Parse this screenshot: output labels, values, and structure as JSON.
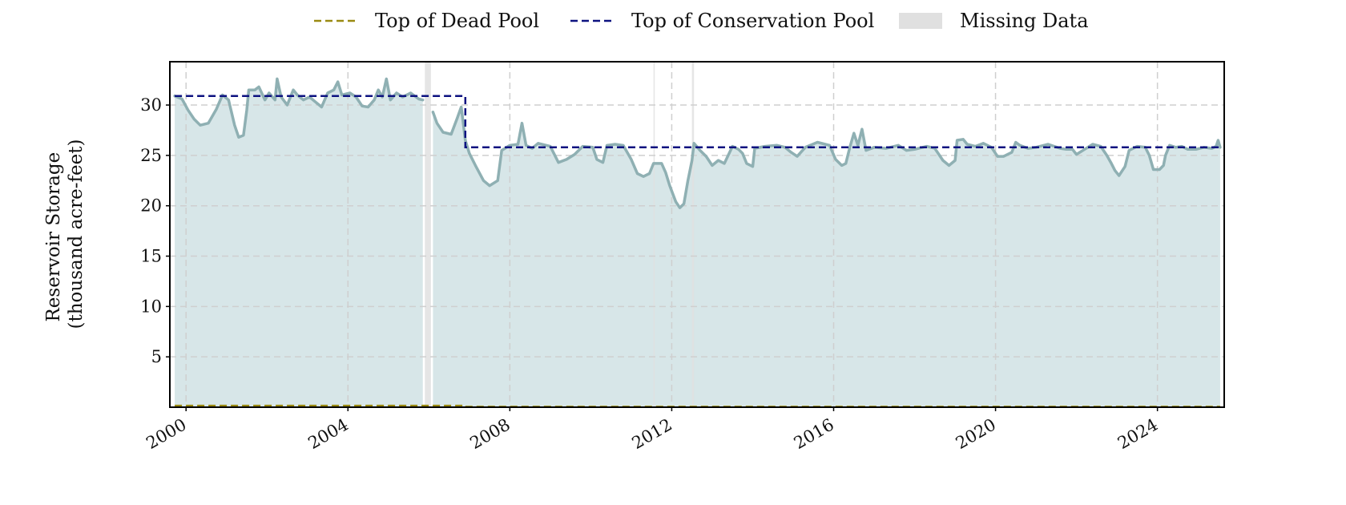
{
  "legend": {
    "dead_pool_label": "Top of Dead Pool",
    "conservation_pool_label": "Top of Conservation Pool",
    "missing_data_label": "Missing Data"
  },
  "colors": {
    "storage_line": "#8fb0b3",
    "storage_fill": "#d7e6e8",
    "conservation_pool": "#0d1280",
    "dead_pool": "#9a8a12",
    "missing_data": "#e0e0e0",
    "grid": "#cfcfcf"
  },
  "chart_data": {
    "type": "area",
    "ylabel_lines": [
      "Reservoir Storage",
      "(thousand acre-feet)"
    ],
    "xlabel": "",
    "xlim": [
      1999.6,
      2025.65
    ],
    "ylim": [
      0,
      34.3
    ],
    "x_ticks": [
      2000,
      2004,
      2008,
      2012,
      2016,
      2020,
      2024
    ],
    "x_tick_labels": [
      "2000",
      "2004",
      "2008",
      "2012",
      "2016",
      "2020",
      "2024"
    ],
    "y_ticks": [
      5,
      10,
      15,
      20,
      25,
      30
    ],
    "y_tick_labels": [
      "5",
      "10",
      "15",
      "20",
      "25",
      "30"
    ],
    "grid": true,
    "legend_position": "top-center",
    "series": [
      {
        "name": "Reservoir Storage",
        "points": [
          [
            1999.72,
            30.9
          ],
          [
            1999.9,
            30.6
          ],
          [
            2000.05,
            29.5
          ],
          [
            2000.2,
            28.6
          ],
          [
            2000.35,
            28.0
          ],
          [
            2000.55,
            28.2
          ],
          [
            2000.75,
            29.6
          ],
          [
            2000.9,
            31.0
          ],
          [
            2001.05,
            30.5
          ],
          [
            2001.2,
            28.0
          ],
          [
            2001.3,
            26.8
          ],
          [
            2001.42,
            27.0
          ],
          [
            2001.5,
            29.5
          ],
          [
            2001.55,
            31.5
          ],
          [
            2001.7,
            31.5
          ],
          [
            2001.8,
            31.8
          ],
          [
            2001.95,
            30.5
          ],
          [
            2002.05,
            31.2
          ],
          [
            2002.2,
            30.5
          ],
          [
            2002.25,
            32.6
          ],
          [
            2002.35,
            30.8
          ],
          [
            2002.5,
            30.0
          ],
          [
            2002.65,
            31.5
          ],
          [
            2002.75,
            31.0
          ],
          [
            2002.9,
            30.5
          ],
          [
            2003.05,
            30.8
          ],
          [
            2003.2,
            30.3
          ],
          [
            2003.35,
            29.8
          ],
          [
            2003.5,
            31.2
          ],
          [
            2003.65,
            31.5
          ],
          [
            2003.75,
            32.3
          ],
          [
            2003.85,
            31.0
          ],
          [
            2004.05,
            31.2
          ],
          [
            2004.2,
            30.8
          ],
          [
            2004.35,
            29.9
          ],
          [
            2004.5,
            29.8
          ],
          [
            2004.65,
            30.5
          ],
          [
            2004.75,
            31.5
          ],
          [
            2004.85,
            30.8
          ],
          [
            2004.95,
            32.6
          ],
          [
            2005.05,
            30.5
          ],
          [
            2005.2,
            31.2
          ],
          [
            2005.35,
            30.8
          ],
          [
            2005.55,
            31.2
          ],
          [
            2005.75,
            30.6
          ],
          [
            2005.85,
            30.5
          ],
          [
            2005.9,
            null
          ],
          [
            2006.1,
            29.3
          ],
          [
            2006.2,
            28.2
          ],
          [
            2006.35,
            27.3
          ],
          [
            2006.55,
            27.1
          ],
          [
            2006.7,
            28.7
          ],
          [
            2006.8,
            29.8
          ],
          [
            2006.9,
            26.5
          ],
          [
            2007.0,
            25.2
          ],
          [
            2007.15,
            24.0
          ],
          [
            2007.35,
            22.5
          ],
          [
            2007.5,
            22.0
          ],
          [
            2007.7,
            22.5
          ],
          [
            2007.8,
            25.5
          ],
          [
            2008.0,
            26.0
          ],
          [
            2008.2,
            26.1
          ],
          [
            2008.3,
            28.2
          ],
          [
            2008.4,
            26.0
          ],
          [
            2008.55,
            25.7
          ],
          [
            2008.7,
            26.2
          ],
          [
            2009.0,
            25.9
          ],
          [
            2009.2,
            24.3
          ],
          [
            2009.4,
            24.6
          ],
          [
            2009.6,
            25.1
          ],
          [
            2009.8,
            25.9
          ],
          [
            2010.05,
            25.8
          ],
          [
            2010.15,
            24.6
          ],
          [
            2010.3,
            24.3
          ],
          [
            2010.4,
            26.0
          ],
          [
            2010.6,
            26.1
          ],
          [
            2010.8,
            26.0
          ],
          [
            2011.0,
            24.6
          ],
          [
            2011.15,
            23.2
          ],
          [
            2011.3,
            22.9
          ],
          [
            2011.45,
            23.2
          ],
          [
            2011.55,
            24.2
          ],
          [
            2011.75,
            24.2
          ],
          [
            2011.85,
            23.3
          ],
          [
            2011.95,
            22.0
          ],
          [
            2012.1,
            20.4
          ],
          [
            2012.2,
            19.8
          ],
          [
            2012.3,
            20.2
          ],
          [
            2012.4,
            22.5
          ],
          [
            2012.5,
            24.5
          ],
          [
            2012.55,
            26.2
          ],
          [
            2012.7,
            25.5
          ],
          [
            2012.85,
            24.9
          ],
          [
            2013.0,
            24.0
          ],
          [
            2013.15,
            24.5
          ],
          [
            2013.3,
            24.2
          ],
          [
            2013.5,
            25.9
          ],
          [
            2013.65,
            25.6
          ],
          [
            2013.75,
            25.2
          ],
          [
            2013.85,
            24.2
          ],
          [
            2014.0,
            23.9
          ],
          [
            2014.05,
            25.7
          ],
          [
            2014.3,
            25.9
          ],
          [
            2014.6,
            26.0
          ],
          [
            2014.8,
            25.8
          ],
          [
            2014.95,
            25.3
          ],
          [
            2015.1,
            24.9
          ],
          [
            2015.3,
            25.8
          ],
          [
            2015.6,
            26.3
          ],
          [
            2015.9,
            26.0
          ],
          [
            2016.05,
            24.6
          ],
          [
            2016.2,
            24.0
          ],
          [
            2016.3,
            24.2
          ],
          [
            2016.4,
            25.8
          ],
          [
            2016.5,
            27.2
          ],
          [
            2016.6,
            26.0
          ],
          [
            2016.7,
            27.6
          ],
          [
            2016.8,
            25.5
          ],
          [
            2017.0,
            25.8
          ],
          [
            2017.3,
            25.7
          ],
          [
            2017.6,
            26.0
          ],
          [
            2017.8,
            25.5
          ],
          [
            2018.0,
            25.6
          ],
          [
            2018.3,
            25.9
          ],
          [
            2018.5,
            25.7
          ],
          [
            2018.7,
            24.5
          ],
          [
            2018.85,
            24.0
          ],
          [
            2019.0,
            24.5
          ],
          [
            2019.05,
            26.5
          ],
          [
            2019.2,
            26.6
          ],
          [
            2019.3,
            26.1
          ],
          [
            2019.5,
            25.9
          ],
          [
            2019.7,
            26.2
          ],
          [
            2019.9,
            25.8
          ],
          [
            2020.05,
            24.9
          ],
          [
            2020.2,
            24.9
          ],
          [
            2020.4,
            25.3
          ],
          [
            2020.5,
            26.3
          ],
          [
            2020.6,
            26.0
          ],
          [
            2020.8,
            25.7
          ],
          [
            2021.0,
            25.8
          ],
          [
            2021.3,
            26.1
          ],
          [
            2021.6,
            25.7
          ],
          [
            2021.75,
            25.6
          ],
          [
            2021.9,
            25.6
          ],
          [
            2022.0,
            25.1
          ],
          [
            2022.2,
            25.6
          ],
          [
            2022.4,
            26.1
          ],
          [
            2022.6,
            25.9
          ],
          [
            2022.75,
            25.0
          ],
          [
            2022.85,
            24.3
          ],
          [
            2022.95,
            23.5
          ],
          [
            2023.05,
            23.0
          ],
          [
            2023.2,
            23.9
          ],
          [
            2023.3,
            25.5
          ],
          [
            2023.5,
            25.9
          ],
          [
            2023.7,
            25.8
          ],
          [
            2023.8,
            25.0
          ],
          [
            2023.9,
            23.6
          ],
          [
            2024.05,
            23.6
          ],
          [
            2024.15,
            24.0
          ],
          [
            2024.2,
            25.0
          ],
          [
            2024.3,
            26.0
          ],
          [
            2024.45,
            25.8
          ],
          [
            2024.6,
            25.9
          ],
          [
            2024.75,
            25.6
          ],
          [
            2024.95,
            25.6
          ],
          [
            2025.15,
            25.8
          ],
          [
            2025.35,
            25.7
          ],
          [
            2025.45,
            25.9
          ],
          [
            2025.5,
            26.5
          ],
          [
            2025.55,
            25.8
          ]
        ]
      },
      {
        "name": "Top of Conservation Pool",
        "points": [
          [
            1999.72,
            30.9
          ],
          [
            2006.9,
            30.9
          ],
          [
            2006.9,
            25.8
          ],
          [
            2025.55,
            25.8
          ]
        ]
      },
      {
        "name": "Top of Dead Pool",
        "points": [
          [
            1999.72,
            0.15
          ],
          [
            2006.9,
            0.15
          ],
          [
            2006.9,
            0.05
          ],
          [
            2025.55,
            0.05
          ]
        ]
      }
    ],
    "missing_data": [
      {
        "start": 2005.9,
        "end": 2006.05
      },
      {
        "start": 2011.55,
        "end": 2011.58
      },
      {
        "start": 2012.5,
        "end": 2012.55
      }
    ]
  }
}
